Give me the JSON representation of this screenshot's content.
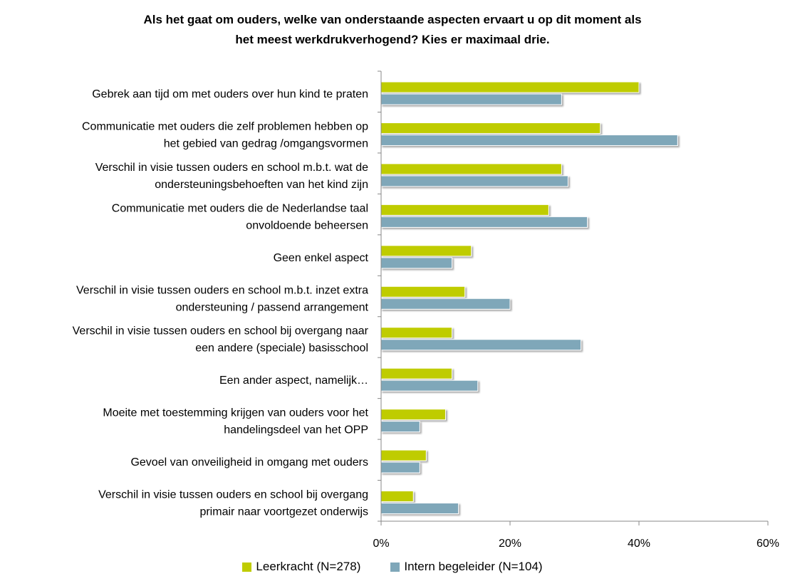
{
  "title_line1": "Als het gaat om ouders, welke van onderstaande aspecten ervaart u op dit moment als",
  "title_line2": "het meest werkdrukverhogend? Kies er maximaal drie.",
  "chart_data": {
    "type": "bar",
    "orientation": "horizontal",
    "title": "Als het gaat om ouders, welke van onderstaande aspecten ervaart u op dit moment als het meest werkdrukverhogend? Kies er maximaal drie.",
    "categories": [
      [
        "Gebrek aan tijd om met ouders over hun kind te praten"
      ],
      [
        "Communicatie met ouders die zelf problemen hebben op",
        "het gebied van gedrag /omgangsvormen"
      ],
      [
        "Verschil in visie tussen ouders en school m.b.t. wat de",
        "ondersteuningsbehoeften van het kind zijn"
      ],
      [
        "Communicatie met ouders die de Nederlandse taal",
        "onvoldoende beheersen"
      ],
      [
        "Geen enkel aspect"
      ],
      [
        "Verschil in visie tussen ouders en school m.b.t. inzet extra",
        "ondersteuning / passend arrangement"
      ],
      [
        "Verschil in visie tussen ouders en school bij overgang naar",
        "een andere (speciale) basisschool"
      ],
      [
        "Een ander aspect, namelijk…"
      ],
      [
        "Moeite met toestemming krijgen van ouders voor het",
        "handelingsdeel van het OPP"
      ],
      [
        "Gevoel van onveiligheid in omgang met ouders"
      ],
      [
        "Verschil in visie tussen ouders en school bij overgang",
        "primair naar voortgezet onderwijs"
      ]
    ],
    "series": [
      {
        "name": "Leerkracht (N=278)",
        "color": "#bfcc00",
        "values": [
          40,
          34,
          28,
          26,
          14,
          13,
          11,
          11,
          10,
          7,
          5
        ]
      },
      {
        "name": "Intern begeleider (N=104)",
        "color": "#7fa7b9",
        "values": [
          28,
          46,
          29,
          32,
          11,
          20,
          31,
          15,
          6,
          6,
          12
        ]
      }
    ],
    "xlim": [
      0,
      60
    ],
    "xticks": [
      0,
      20,
      40,
      60
    ],
    "tick_suffix": "%",
    "grid": false,
    "legend_position": "bottom"
  }
}
